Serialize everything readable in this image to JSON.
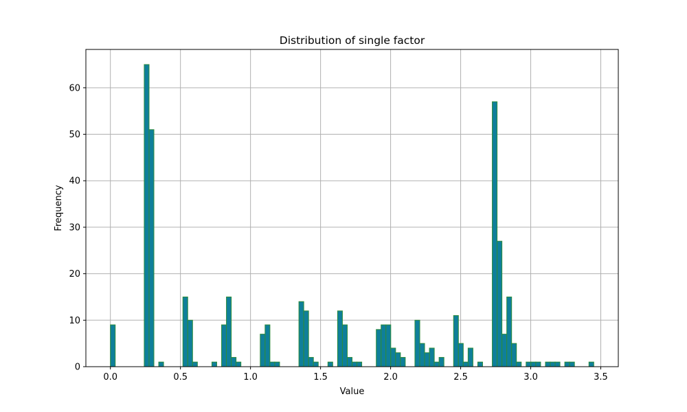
{
  "chart_data": {
    "type": "bar",
    "title": "Distribution of single factor",
    "xlabel": "Value",
    "ylabel": "Frequency",
    "xlim": [
      -0.175,
      3.625
    ],
    "ylim": [
      0,
      68.25
    ],
    "xticks": [
      0.0,
      0.5,
      1.0,
      1.5,
      2.0,
      2.5,
      3.0,
      3.5
    ],
    "xtick_labels": [
      "0.0",
      "0.5",
      "1.0",
      "1.5",
      "2.0",
      "2.5",
      "3.0",
      "3.5"
    ],
    "yticks": [
      0,
      10,
      20,
      30,
      40,
      50,
      60
    ],
    "ytick_labels": [
      "0",
      "10",
      "20",
      "30",
      "40",
      "50",
      "60"
    ],
    "grid": true,
    "bar_color": "#0f7f9a",
    "edge_color": "#2e8b3a",
    "bin_start": 0.0,
    "bin_width": 0.0345,
    "counts": [
      9,
      0,
      0,
      0,
      0,
      0,
      0,
      65,
      51,
      0,
      1,
      0,
      0,
      0,
      0,
      15,
      10,
      1,
      0,
      0,
      0,
      1,
      0,
      9,
      15,
      2,
      1,
      0,
      0,
      0,
      0,
      7,
      9,
      1,
      1,
      0,
      0,
      0,
      0,
      14,
      12,
      2,
      1,
      0,
      0,
      1,
      0,
      12,
      9,
      2,
      1,
      1,
      0,
      0,
      0,
      8,
      9,
      9,
      4,
      3,
      2,
      0,
      0,
      10,
      5,
      3,
      4,
      1,
      2,
      0,
      0,
      11,
      5,
      1,
      4,
      0,
      1,
      0,
      0,
      57,
      27,
      7,
      15,
      5,
      1,
      0,
      1,
      1,
      1,
      0,
      1,
      1,
      1,
      0,
      1,
      1,
      0,
      0,
      0,
      1
    ]
  }
}
